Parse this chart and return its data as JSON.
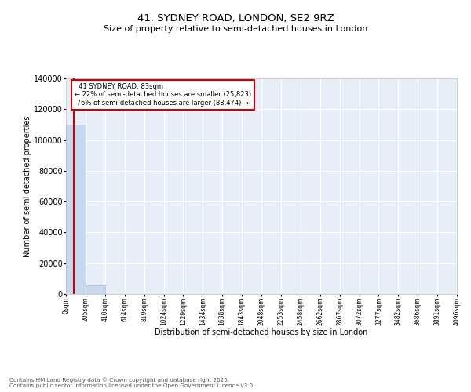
{
  "title": "41, SYDNEY ROAD, LONDON, SE2 9RZ",
  "subtitle": "Size of property relative to semi-detached houses in London",
  "xlabel": "Distribution of semi-detached houses by size in London",
  "ylabel": "Number of semi-detached properties",
  "property_size": 83,
  "property_label": "41 SYDNEY ROAD: 83sqm",
  "pct_smaller": 22,
  "pct_larger": 76,
  "count_smaller": 25823,
  "count_larger": 88474,
  "bar_color": "#c8d8ee",
  "bar_edge_color": "#aabcd8",
  "vline_color": "#cc0000",
  "background_color": "#e8eef8",
  "grid_color": "#ffffff",
  "footer": "Contains HM Land Registry data © Crown copyright and database right 2025.\nContains public sector information licensed under the Open Government Licence v3.0.",
  "bins": [
    "0sqm",
    "205sqm",
    "410sqm",
    "614sqm",
    "819sqm",
    "1024sqm",
    "1229sqm",
    "1434sqm",
    "1638sqm",
    "1843sqm",
    "2048sqm",
    "2253sqm",
    "2458sqm",
    "2662sqm",
    "2867sqm",
    "3072sqm",
    "3277sqm",
    "3482sqm",
    "3686sqm",
    "3891sqm",
    "4096sqm"
  ],
  "bin_edges": [
    0,
    205,
    410,
    614,
    819,
    1024,
    1229,
    1434,
    1638,
    1843,
    2048,
    2253,
    2458,
    2662,
    2867,
    3072,
    3277,
    3482,
    3686,
    3891,
    4096
  ],
  "bar_heights": [
    110000,
    5500,
    200,
    50,
    10,
    5,
    2,
    1,
    0,
    0,
    0,
    0,
    0,
    0,
    0,
    0,
    0,
    0,
    0,
    0
  ],
  "ylim": [
    0,
    140000
  ],
  "yticks": [
    0,
    20000,
    40000,
    60000,
    80000,
    100000,
    120000,
    140000
  ]
}
